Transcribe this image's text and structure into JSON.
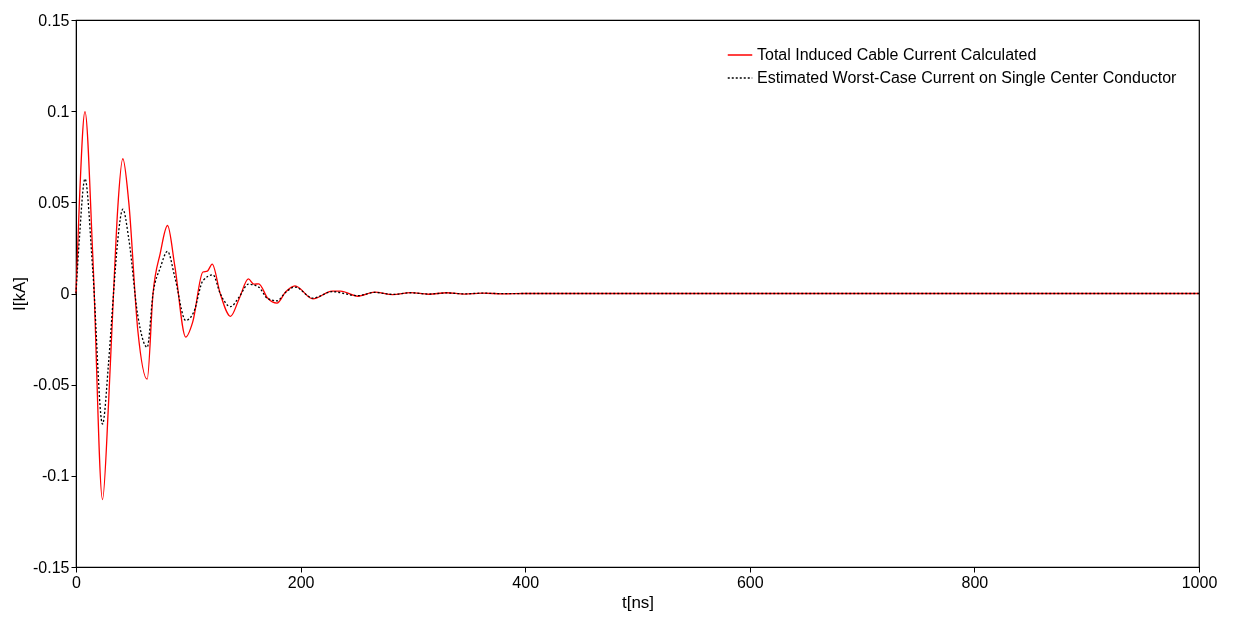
{
  "chart_data": {
    "type": "line",
    "xlabel": "t[ns]",
    "ylabel": "I[kA]",
    "xlim": [
      0,
      1000
    ],
    "xticks": [
      0,
      200,
      400,
      600,
      800,
      1000
    ],
    "ylim": [
      -0.15,
      0.15
    ],
    "yticks": [
      -0.15,
      -0.1,
      -0.05,
      0,
      0.05,
      0.1,
      0.15
    ],
    "grid": false,
    "legend": "top right",
    "marker": "none",
    "series": [
      {
        "name": "Total Induced Cable Current Calculated",
        "color": "#ff0000",
        "line_style": "solid",
        "x": [
          0,
          3,
          8,
          15,
          23.6,
          29,
          33.4,
          37,
          41.7,
          47,
          55,
          63.4,
          68.6,
          75,
          81.5,
          88,
          97.7,
          103.9,
          113,
          117,
          121.3,
          128.4,
          137.6,
          145.2,
          153.5,
          158.4,
          162.7,
          170.6,
          179,
          186.6,
          195,
          211,
          228,
          235.6,
          251,
          266,
          282,
          298,
          314,
          330,
          346,
          362,
          380,
          400,
          1000
        ],
        "values": [
          0,
          0.05,
          0.0998,
          0.02,
          -0.113,
          -0.06,
          0,
          0.045,
          0.0739,
          0.05,
          -0.02,
          -0.047,
          0,
          0.022,
          0.0373,
          0.015,
          -0.0239,
          -0.0157,
          0.0118,
          0.0123,
          0.0161,
          0,
          -0.0125,
          -0.003,
          0.008,
          0.0051,
          0.0053,
          -0.0025,
          -0.0053,
          0.0008,
          0.0042,
          -0.003,
          0.0013,
          0.0013,
          -0.0015,
          0.0007,
          -0.0006,
          0.0005,
          -0.0004,
          0.0004,
          -0.0003,
          0.0002,
          -0.0002,
          0,
          0
        ]
      },
      {
        "name": "Estimated Worst-Case Current on Single Center Conductor",
        "color": "#000000",
        "line_style": "dotted",
        "x": [
          0,
          3,
          8,
          15,
          23.6,
          29,
          33.4,
          37,
          41.7,
          47,
          55,
          63.4,
          68.6,
          75,
          81.5,
          88,
          97.7,
          105,
          113,
          122,
          128.4,
          137.6,
          145.2,
          153.5,
          162.7,
          170.6,
          179,
          186.6,
          195,
          211,
          228,
          251,
          266,
          282,
          298,
          314,
          330,
          346,
          362,
          380,
          400,
          1000
        ],
        "values": [
          0,
          0.03,
          0.0629,
          0.012,
          -0.0716,
          -0.038,
          0,
          0.028,
          0.0462,
          0.03,
          -0.012,
          -0.0295,
          0,
          0.014,
          0.0231,
          0.009,
          -0.0148,
          -0.01,
          0.007,
          0.0102,
          0,
          -0.0072,
          -0.002,
          0.0051,
          0.0035,
          -0.0028,
          -0.004,
          0.0006,
          0.0035,
          -0.0025,
          0.001,
          -0.0012,
          0.0006,
          -0.0005,
          0.0004,
          -0.0003,
          0.0003,
          -0.0002,
          0.0002,
          -0.0001,
          0,
          0
        ]
      }
    ]
  }
}
